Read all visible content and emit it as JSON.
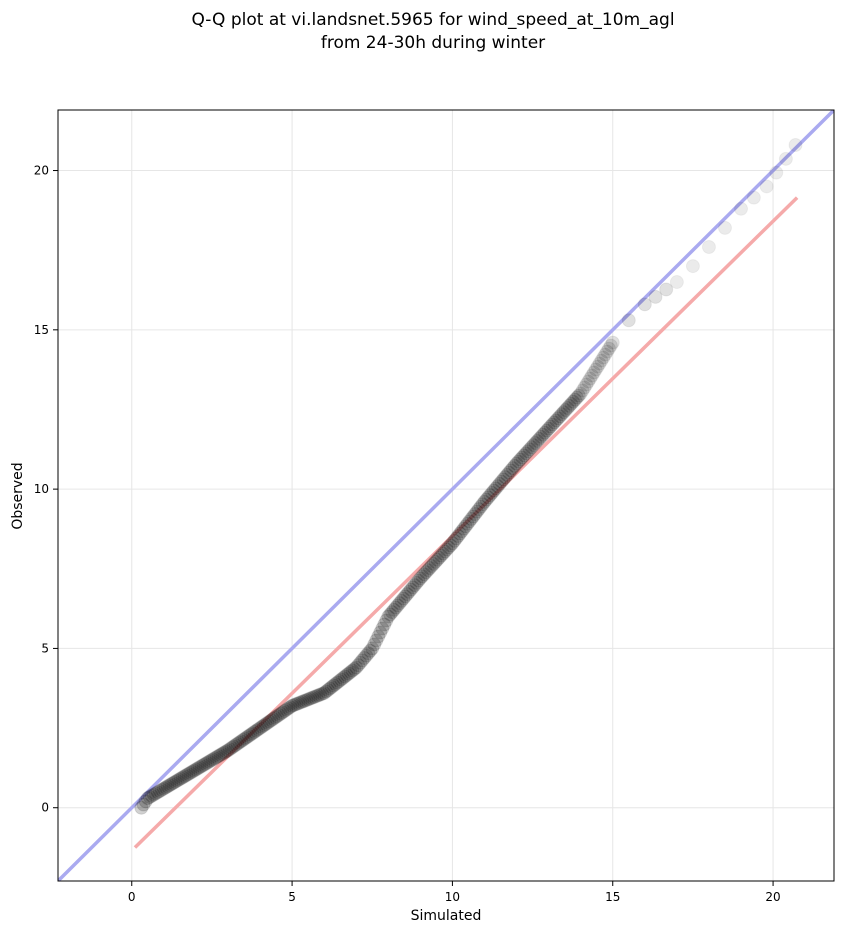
{
  "chart_data": {
    "type": "scatter",
    "title_lines": [
      "Q-Q plot at vi.landsnet.5965 for wind_speed_at_10m_agl",
      "from 24-30h during winter"
    ],
    "xlabel": "Simulated",
    "ylabel": "Observed",
    "xlim": [
      -2.3,
      21.9
    ],
    "ylim": [
      -2.3,
      21.9
    ],
    "xticks": [
      "0",
      "5",
      "10",
      "15",
      "20"
    ],
    "yticks": [
      "0",
      "5",
      "10",
      "15",
      "20"
    ],
    "grid": true,
    "reference_lines": [
      {
        "kind": "identity",
        "color": "#aaaaf0",
        "x": [
          -2.3,
          21.9
        ],
        "y": [
          -2.3,
          21.9
        ]
      },
      {
        "kind": "fit",
        "color": "#f5aaaa",
        "x": [
          0.1,
          20.75
        ],
        "y": [
          -1.25,
          19.15
        ]
      }
    ],
    "quantile_curve": {
      "x": [
        0.3,
        0.5,
        1.0,
        2.0,
        3.0,
        4.0,
        5.0,
        5.5,
        6.0,
        7.0,
        7.5,
        8.0,
        9.0,
        10.0,
        11.0,
        12.0,
        13.0,
        14.0,
        15.0,
        15.5,
        16.0,
        17.0,
        17.5,
        18.0,
        18.5,
        19.0,
        19.8,
        20.7
      ],
      "y": [
        0.0,
        0.3,
        0.6,
        1.2,
        1.8,
        2.5,
        3.2,
        3.4,
        3.6,
        4.4,
        5.0,
        6.0,
        7.2,
        8.3,
        9.6,
        10.8,
        11.9,
        13.0,
        14.6,
        15.3,
        15.8,
        16.5,
        17.0,
        17.6,
        18.2,
        18.8,
        19.5,
        20.8
      ]
    }
  }
}
